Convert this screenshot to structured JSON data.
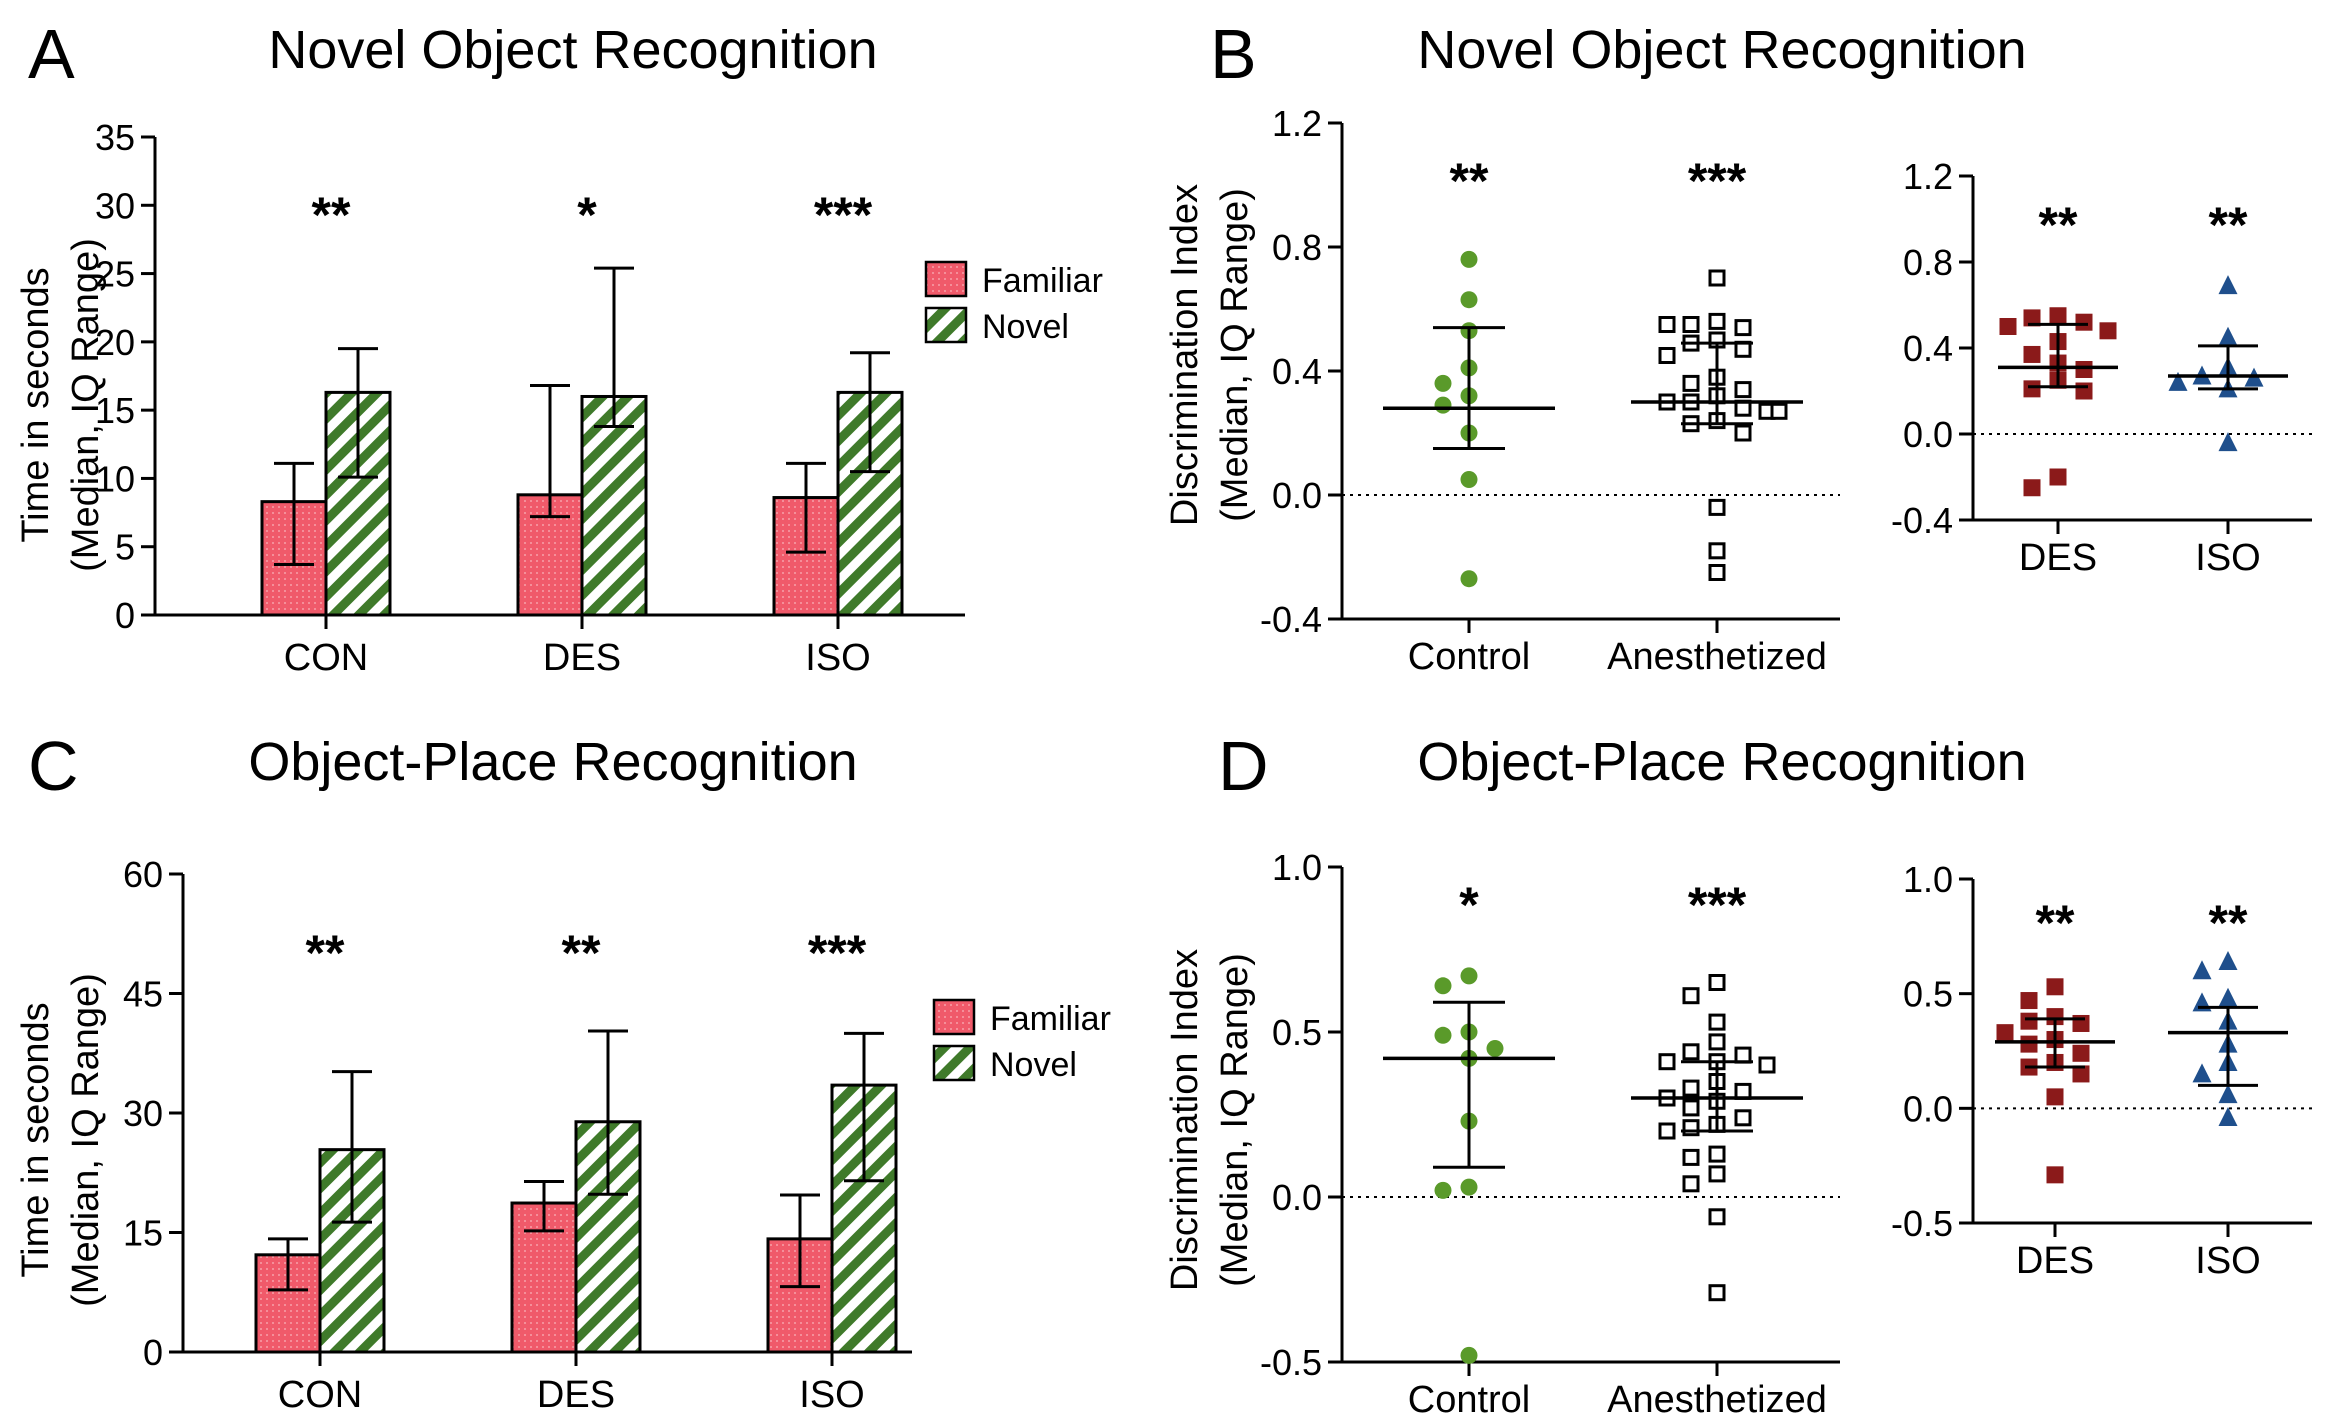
{
  "colors": {
    "familiar": "#f05a6a",
    "novel": "#3f7a2a",
    "control": "#5a9a2a",
    "des": "#8b1a1a",
    "iso": "#1f4f8c",
    "axis": "#000000"
  },
  "chart_data": [
    {
      "panel": "A",
      "type": "bar",
      "title": "Novel Object Recognition",
      "ylabel": "Time in seconds",
      "ylabel2": "(Median, IQ Range)",
      "ylim": [
        0,
        35
      ],
      "yticks": [
        0,
        5,
        10,
        15,
        20,
        25,
        30,
        35
      ],
      "categories": [
        "CON",
        "DES",
        "ISO"
      ],
      "legend": [
        "Familiar",
        "Novel"
      ],
      "significance": [
        "**",
        "*",
        "***"
      ],
      "series": [
        {
          "name": "Familiar",
          "values": [
            8.3,
            8.8,
            8.6
          ],
          "q1": [
            3.7,
            7.2,
            4.6
          ],
          "q3": [
            11.1,
            16.8,
            11.1
          ]
        },
        {
          "name": "Novel",
          "values": [
            16.3,
            16.0,
            16.3
          ],
          "q1": [
            10.1,
            13.8,
            10.5
          ],
          "q3": [
            19.5,
            25.4,
            19.2
          ]
        }
      ]
    },
    {
      "panel": "B",
      "type": "scatter",
      "title": "Novel Object Recognition",
      "ylabel": "Discrimination Index",
      "ylabel2": "(Median, IQ Range)",
      "ylim": [
        -0.4,
        1.2
      ],
      "yticks": [
        "-0.4",
        "0.0",
        "0.4",
        "0.8",
        "1.2"
      ],
      "groups": [
        {
          "name": "Control",
          "marker": "circle-filled",
          "significance": "**",
          "median": 0.28,
          "q1": 0.15,
          "q3": 0.54,
          "points": [
            0.76,
            0.63,
            0.53,
            0.41,
            0.36,
            0.32,
            0.29,
            0.2,
            0.05,
            -0.27
          ]
        },
        {
          "name": "Anesthetized",
          "marker": "square-open",
          "significance": "***",
          "median": 0.3,
          "q1": 0.23,
          "q3": 0.49,
          "points": [
            0.7,
            0.56,
            0.55,
            0.54,
            0.55,
            0.5,
            0.49,
            0.47,
            0.45,
            0.38,
            0.36,
            0.34,
            0.32,
            0.3,
            0.3,
            0.28,
            0.27,
            0.27,
            0.24,
            0.23,
            0.2,
            -0.04,
            -0.18,
            -0.25
          ]
        }
      ],
      "inset": {
        "ylim": [
          -0.4,
          1.2
        ],
        "yticks": [
          "-0.4",
          "0.0",
          "0.4",
          "0.8",
          "1.2"
        ],
        "groups": [
          {
            "name": "DES",
            "marker": "square-filled",
            "significance": "**",
            "median": 0.31,
            "q1": 0.22,
            "q3": 0.51,
            "points": [
              0.55,
              0.54,
              0.52,
              0.5,
              0.48,
              0.43,
              0.37,
              0.33,
              0.3,
              0.25,
              0.21,
              0.2,
              -0.2,
              -0.25
            ]
          },
          {
            "name": "ISO",
            "marker": "triangle-filled",
            "significance": "**",
            "median": 0.27,
            "q1": 0.21,
            "q3": 0.41,
            "points": [
              0.69,
              0.45,
              0.31,
              0.27,
              0.26,
              0.24,
              0.21,
              -0.04
            ]
          }
        ]
      }
    },
    {
      "panel": "C",
      "type": "bar",
      "title": "Object-Place Recognition",
      "ylabel": "Time in seconds",
      "ylabel2": "(Median, IQ Range)",
      "ylim": [
        0,
        60
      ],
      "yticks": [
        0,
        15,
        30,
        45,
        60
      ],
      "categories": [
        "CON",
        "DES",
        "ISO"
      ],
      "legend": [
        "Familiar",
        "Novel"
      ],
      "significance": [
        "**",
        "**",
        "***"
      ],
      "series": [
        {
          "name": "Familiar",
          "values": [
            12.2,
            18.7,
            14.2
          ],
          "q1": [
            7.8,
            15.2,
            8.2
          ],
          "q3": [
            14.2,
            21.4,
            19.7
          ]
        },
        {
          "name": "Novel",
          "values": [
            25.4,
            28.9,
            33.5
          ],
          "q1": [
            16.3,
            19.8,
            21.5
          ],
          "q3": [
            35.2,
            40.3,
            40.0
          ]
        }
      ]
    },
    {
      "panel": "D",
      "type": "scatter",
      "title": "Object-Place Recognition",
      "ylabel": "Discrimination Index",
      "ylabel2": "(Median, IQ Range)",
      "ylim": [
        -0.5,
        1.0
      ],
      "yticks": [
        "-0.5",
        "0.0",
        "0.5",
        "1.0"
      ],
      "groups": [
        {
          "name": "Control",
          "marker": "circle-filled",
          "significance": "*",
          "median": 0.42,
          "q1": 0.09,
          "q3": 0.59,
          "points": [
            0.67,
            0.64,
            0.5,
            0.49,
            0.45,
            0.42,
            0.23,
            0.03,
            0.02,
            -0.48
          ]
        },
        {
          "name": "Anesthetized",
          "marker": "square-open",
          "significance": "***",
          "median": 0.3,
          "q1": 0.2,
          "q3": 0.41,
          "points": [
            0.65,
            0.61,
            0.53,
            0.47,
            0.44,
            0.43,
            0.41,
            0.41,
            0.4,
            0.35,
            0.33,
            0.32,
            0.3,
            0.29,
            0.27,
            0.24,
            0.22,
            0.21,
            0.2,
            0.13,
            0.12,
            0.07,
            0.04,
            -0.06,
            -0.29
          ]
        }
      ],
      "inset": {
        "ylim": [
          -0.5,
          1.0
        ],
        "yticks": [
          "-0.5",
          "0.0",
          "0.5",
          "1.0"
        ],
        "groups": [
          {
            "name": "DES",
            "marker": "square-filled",
            "significance": "**",
            "median": 0.29,
            "q1": 0.18,
            "q3": 0.39,
            "points": [
              0.53,
              0.47,
              0.4,
              0.38,
              0.37,
              0.33,
              0.3,
              0.28,
              0.24,
              0.2,
              0.18,
              0.15,
              0.05,
              -0.29
            ]
          },
          {
            "name": "ISO",
            "marker": "triangle-filled",
            "significance": "**",
            "median": 0.33,
            "q1": 0.1,
            "q3": 0.44,
            "points": [
              0.64,
              0.6,
              0.48,
              0.46,
              0.38,
              0.28,
              0.2,
              0.15,
              0.06,
              -0.04
            ]
          }
        ]
      }
    }
  ]
}
